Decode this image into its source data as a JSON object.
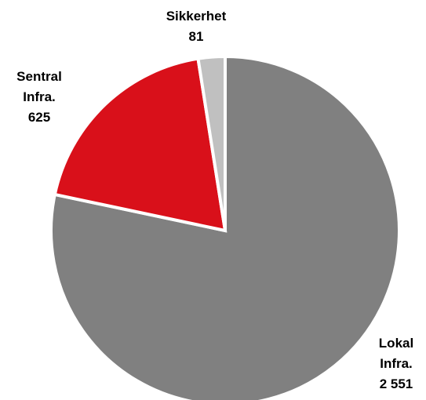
{
  "chart_data": {
    "type": "pie",
    "categories": [
      "Lokal Infra.",
      "Sentral Infra.",
      "Sikkerhet"
    ],
    "values": [
      2551,
      625,
      81
    ],
    "value_labels": [
      "2 551",
      "625",
      "81"
    ],
    "colors": [
      "#808080",
      "#d9101a",
      "#c0c0c0"
    ]
  }
}
